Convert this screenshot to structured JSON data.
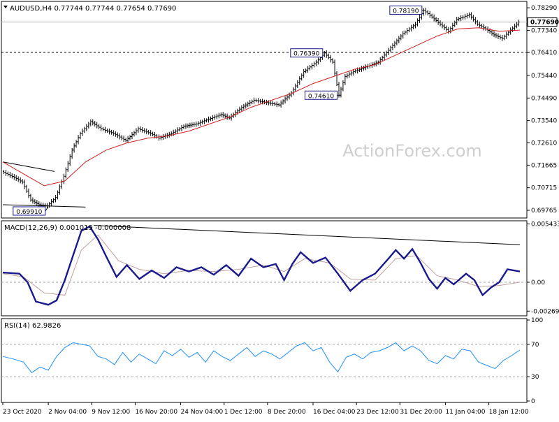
{
  "chart_data": [
    {
      "type": "candlestick",
      "title": "AUDUSD,H4  0.77744 0.77744 0.77654 0.77690",
      "watermark": "ActionForex.com",
      "ylim": [
        0.695,
        0.785
      ],
      "y_ticks": [
        0.7829,
        0.7734,
        0.7641,
        0.7544,
        0.7449,
        0.7354,
        0.7261,
        0.71665,
        0.70715,
        0.69765
      ],
      "y_tick_labels": [
        "0.78290",
        "0.77340",
        "0.76410",
        "0.75440",
        "0.74490",
        "0.73540",
        "0.72610",
        "0.71665",
        "0.70715",
        "0.69765"
      ],
      "current_price": {
        "value": 0.7769,
        "label": "0.77690"
      },
      "horizontal_levels": [
        {
          "value": 0.7769,
          "style": "solid-light"
        },
        {
          "value": 0.7641,
          "style": "dashed",
          "label": "0.76410"
        }
      ],
      "annotations": [
        {
          "label": "0.69910",
          "value": 0.6991
        },
        {
          "label": "0.76390",
          "value": 0.7639
        },
        {
          "label": "0.74610",
          "value": 0.7461
        },
        {
          "label": "0.78190",
          "value": 0.7819
        }
      ],
      "price_path": [
        [
          0,
          0.714
        ],
        [
          6,
          0.7115
        ],
        [
          10,
          0.7095
        ],
        [
          14,
          0.702
        ],
        [
          18,
          0.7
        ],
        [
          22,
          0.6995
        ],
        [
          26,
          0.703
        ],
        [
          30,
          0.712
        ],
        [
          34,
          0.723
        ],
        [
          38,
          0.73
        ],
        [
          43,
          0.735
        ],
        [
          48,
          0.732
        ],
        [
          54,
          0.73
        ],
        [
          60,
          0.727
        ],
        [
          66,
          0.732
        ],
        [
          72,
          0.73
        ],
        [
          76,
          0.728
        ],
        [
          82,
          0.73
        ],
        [
          88,
          0.733
        ],
        [
          94,
          0.734
        ],
        [
          100,
          0.736
        ],
        [
          106,
          0.738
        ],
        [
          110,
          0.7365
        ],
        [
          116,
          0.741
        ],
        [
          122,
          0.744
        ],
        [
          128,
          0.743
        ],
        [
          134,
          0.742
        ],
        [
          140,
          0.747
        ],
        [
          146,
          0.756
        ],
        [
          152,
          0.76
        ],
        [
          156,
          0.7639
        ],
        [
          160,
          0.76
        ],
        [
          163,
          0.7461
        ],
        [
          166,
          0.754
        ],
        [
          170,
          0.756
        ],
        [
          176,
          0.758
        ],
        [
          182,
          0.76
        ],
        [
          188,
          0.766
        ],
        [
          194,
          0.772
        ],
        [
          200,
          0.776
        ],
        [
          204,
          0.7819
        ],
        [
          208,
          0.779
        ],
        [
          212,
          0.776
        ],
        [
          216,
          0.773
        ],
        [
          220,
          0.778
        ],
        [
          226,
          0.78
        ],
        [
          230,
          0.776
        ],
        [
          234,
          0.774
        ],
        [
          238,
          0.7715
        ],
        [
          242,
          0.77
        ],
        [
          246,
          0.7735
        ],
        [
          250,
          0.7769
        ]
      ],
      "moving_average": [
        [
          0,
          0.718
        ],
        [
          10,
          0.713
        ],
        [
          20,
          0.708
        ],
        [
          30,
          0.71
        ],
        [
          40,
          0.718
        ],
        [
          50,
          0.723
        ],
        [
          60,
          0.726
        ],
        [
          70,
          0.728
        ],
        [
          80,
          0.729
        ],
        [
          90,
          0.731
        ],
        [
          100,
          0.734
        ],
        [
          110,
          0.737
        ],
        [
          120,
          0.741
        ],
        [
          130,
          0.744
        ],
        [
          140,
          0.747
        ],
        [
          150,
          0.751
        ],
        [
          160,
          0.754
        ],
        [
          170,
          0.757
        ],
        [
          180,
          0.759
        ],
        [
          190,
          0.763
        ],
        [
          200,
          0.767
        ],
        [
          210,
          0.771
        ],
        [
          220,
          0.774
        ],
        [
          230,
          0.7745
        ],
        [
          240,
          0.773
        ],
        [
          250,
          0.7735
        ]
      ],
      "trend_lines": [
        {
          "from": [
            0,
            0.718
          ],
          "to": [
            25,
            0.714
          ]
        },
        {
          "from": [
            0,
            0.7
          ],
          "to": [
            40,
            0.699
          ]
        }
      ]
    },
    {
      "type": "line",
      "title": "MACD(12,26,9) 0.001019 -0.000008",
      "ylim": [
        -0.003,
        0.0056
      ],
      "y_ticks": [
        0.005433,
        0.0,
        -0.002694
      ],
      "y_tick_labels": [
        "0.005433",
        "0.00",
        "-0.002694"
      ],
      "current_value_label": "0.00",
      "macd": [
        [
          0,
          0.0009
        ],
        [
          8,
          0.0008
        ],
        [
          12,
          0.0
        ],
        [
          16,
          -0.0018
        ],
        [
          22,
          -0.0021
        ],
        [
          26,
          -0.0017
        ],
        [
          30,
          0.0002
        ],
        [
          34,
          0.0025
        ],
        [
          38,
          0.0048
        ],
        [
          42,
          0.0052
        ],
        [
          46,
          0.004
        ],
        [
          50,
          0.0024
        ],
        [
          55,
          0.0005
        ],
        [
          60,
          0.0016
        ],
        [
          66,
          0.0003
        ],
        [
          72,
          0.0011
        ],
        [
          78,
          0.0004
        ],
        [
          84,
          0.0014
        ],
        [
          90,
          0.001
        ],
        [
          96,
          0.0014
        ],
        [
          102,
          0.0007
        ],
        [
          108,
          0.0016
        ],
        [
          114,
          0.0006
        ],
        [
          120,
          0.0022
        ],
        [
          126,
          0.0014
        ],
        [
          132,
          0.0017
        ],
        [
          136,
          0.0002
        ],
        [
          140,
          0.0017
        ],
        [
          144,
          0.0028
        ],
        [
          150,
          0.0018
        ],
        [
          156,
          0.0023
        ],
        [
          162,
          0.0008
        ],
        [
          168,
          -0.0008
        ],
        [
          174,
          0.0002
        ],
        [
          180,
          0.0008
        ],
        [
          186,
          0.0021
        ],
        [
          190,
          0.003
        ],
        [
          194,
          0.0022
        ],
        [
          198,
          0.0031
        ],
        [
          202,
          0.0018
        ],
        [
          206,
          0.0003
        ],
        [
          210,
          -0.0006
        ],
        [
          214,
          0.0004
        ],
        [
          218,
          -0.0002
        ],
        [
          224,
          0.0008
        ],
        [
          228,
          0.0002
        ],
        [
          232,
          -0.0012
        ],
        [
          236,
          -0.0005
        ],
        [
          240,
          0.0
        ],
        [
          244,
          0.0012
        ],
        [
          250,
          0.001
        ]
      ],
      "signal": [
        [
          0,
          0.0008
        ],
        [
          10,
          0.0005
        ],
        [
          20,
          -0.001
        ],
        [
          30,
          -0.0012
        ],
        [
          38,
          0.003
        ],
        [
          46,
          0.0044
        ],
        [
          56,
          0.002
        ],
        [
          66,
          0.0012
        ],
        [
          78,
          0.0008
        ],
        [
          90,
          0.0011
        ],
        [
          102,
          0.001
        ],
        [
          114,
          0.0012
        ],
        [
          126,
          0.0016
        ],
        [
          136,
          0.001
        ],
        [
          146,
          0.0022
        ],
        [
          158,
          0.0018
        ],
        [
          168,
          0.0003
        ],
        [
          180,
          0.0002
        ],
        [
          190,
          0.0022
        ],
        [
          200,
          0.0025
        ],
        [
          210,
          0.0006
        ],
        [
          220,
          0.0002
        ],
        [
          230,
          -0.0004
        ],
        [
          240,
          -0.0003
        ],
        [
          250,
          0.0
        ]
      ],
      "trend_line": {
        "from": [
          44,
          0.0053
        ],
        "to": [
          250,
          0.0035
        ]
      }
    },
    {
      "type": "line",
      "title": "RSI(14) 62.9826",
      "ylim": [
        0,
        100
      ],
      "y_ticks": [
        100,
        70,
        30,
        0
      ],
      "y_tick_labels": [
        "100",
        "70",
        "30",
        "0"
      ],
      "levels": [
        70,
        30
      ],
      "rsi": [
        [
          0,
          55
        ],
        [
          5,
          52
        ],
        [
          10,
          48
        ],
        [
          14,
          35
        ],
        [
          18,
          42
        ],
        [
          22,
          38
        ],
        [
          26,
          55
        ],
        [
          30,
          66
        ],
        [
          34,
          72
        ],
        [
          38,
          70
        ],
        [
          42,
          68
        ],
        [
          46,
          55
        ],
        [
          50,
          52
        ],
        [
          54,
          45
        ],
        [
          58,
          60
        ],
        [
          62,
          48
        ],
        [
          66,
          58
        ],
        [
          70,
          52
        ],
        [
          74,
          46
        ],
        [
          78,
          62
        ],
        [
          82,
          56
        ],
        [
          86,
          64
        ],
        [
          90,
          54
        ],
        [
          94,
          60
        ],
        [
          98,
          48
        ],
        [
          102,
          62
        ],
        [
          106,
          55
        ],
        [
          110,
          50
        ],
        [
          114,
          58
        ],
        [
          118,
          66
        ],
        [
          122,
          55
        ],
        [
          126,
          62
        ],
        [
          130,
          58
        ],
        [
          134,
          52
        ],
        [
          138,
          60
        ],
        [
          142,
          68
        ],
        [
          146,
          72
        ],
        [
          150,
          62
        ],
        [
          154,
          66
        ],
        [
          158,
          48
        ],
        [
          162,
          36
        ],
        [
          166,
          54
        ],
        [
          170,
          58
        ],
        [
          174,
          52
        ],
        [
          178,
          60
        ],
        [
          182,
          62
        ],
        [
          186,
          66
        ],
        [
          190,
          72
        ],
        [
          194,
          62
        ],
        [
          198,
          68
        ],
        [
          202,
          62
        ],
        [
          206,
          50
        ],
        [
          210,
          46
        ],
        [
          214,
          56
        ],
        [
          218,
          52
        ],
        [
          222,
          64
        ],
        [
          226,
          62
        ],
        [
          230,
          48
        ],
        [
          234,
          44
        ],
        [
          238,
          40
        ],
        [
          242,
          50
        ],
        [
          246,
          56
        ],
        [
          250,
          63
        ]
      ]
    }
  ],
  "x_axis": {
    "labels": [
      "23 Oct 2020",
      "2 Nov 04:00",
      "9 Nov 12:00",
      "16 Nov 20:00",
      "24 Nov 04:00",
      "1 Dec 12:00",
      "8 Dec 20:00",
      "16 Dec 04:00",
      "23 Dec 12:00",
      "31 Dec 20:00",
      "11 Jan 04:00",
      "18 Jan 12:00"
    ],
    "label_positions": [
      0,
      22,
      43,
      64,
      86,
      107,
      128,
      150,
      171,
      192,
      214,
      235
    ]
  }
}
